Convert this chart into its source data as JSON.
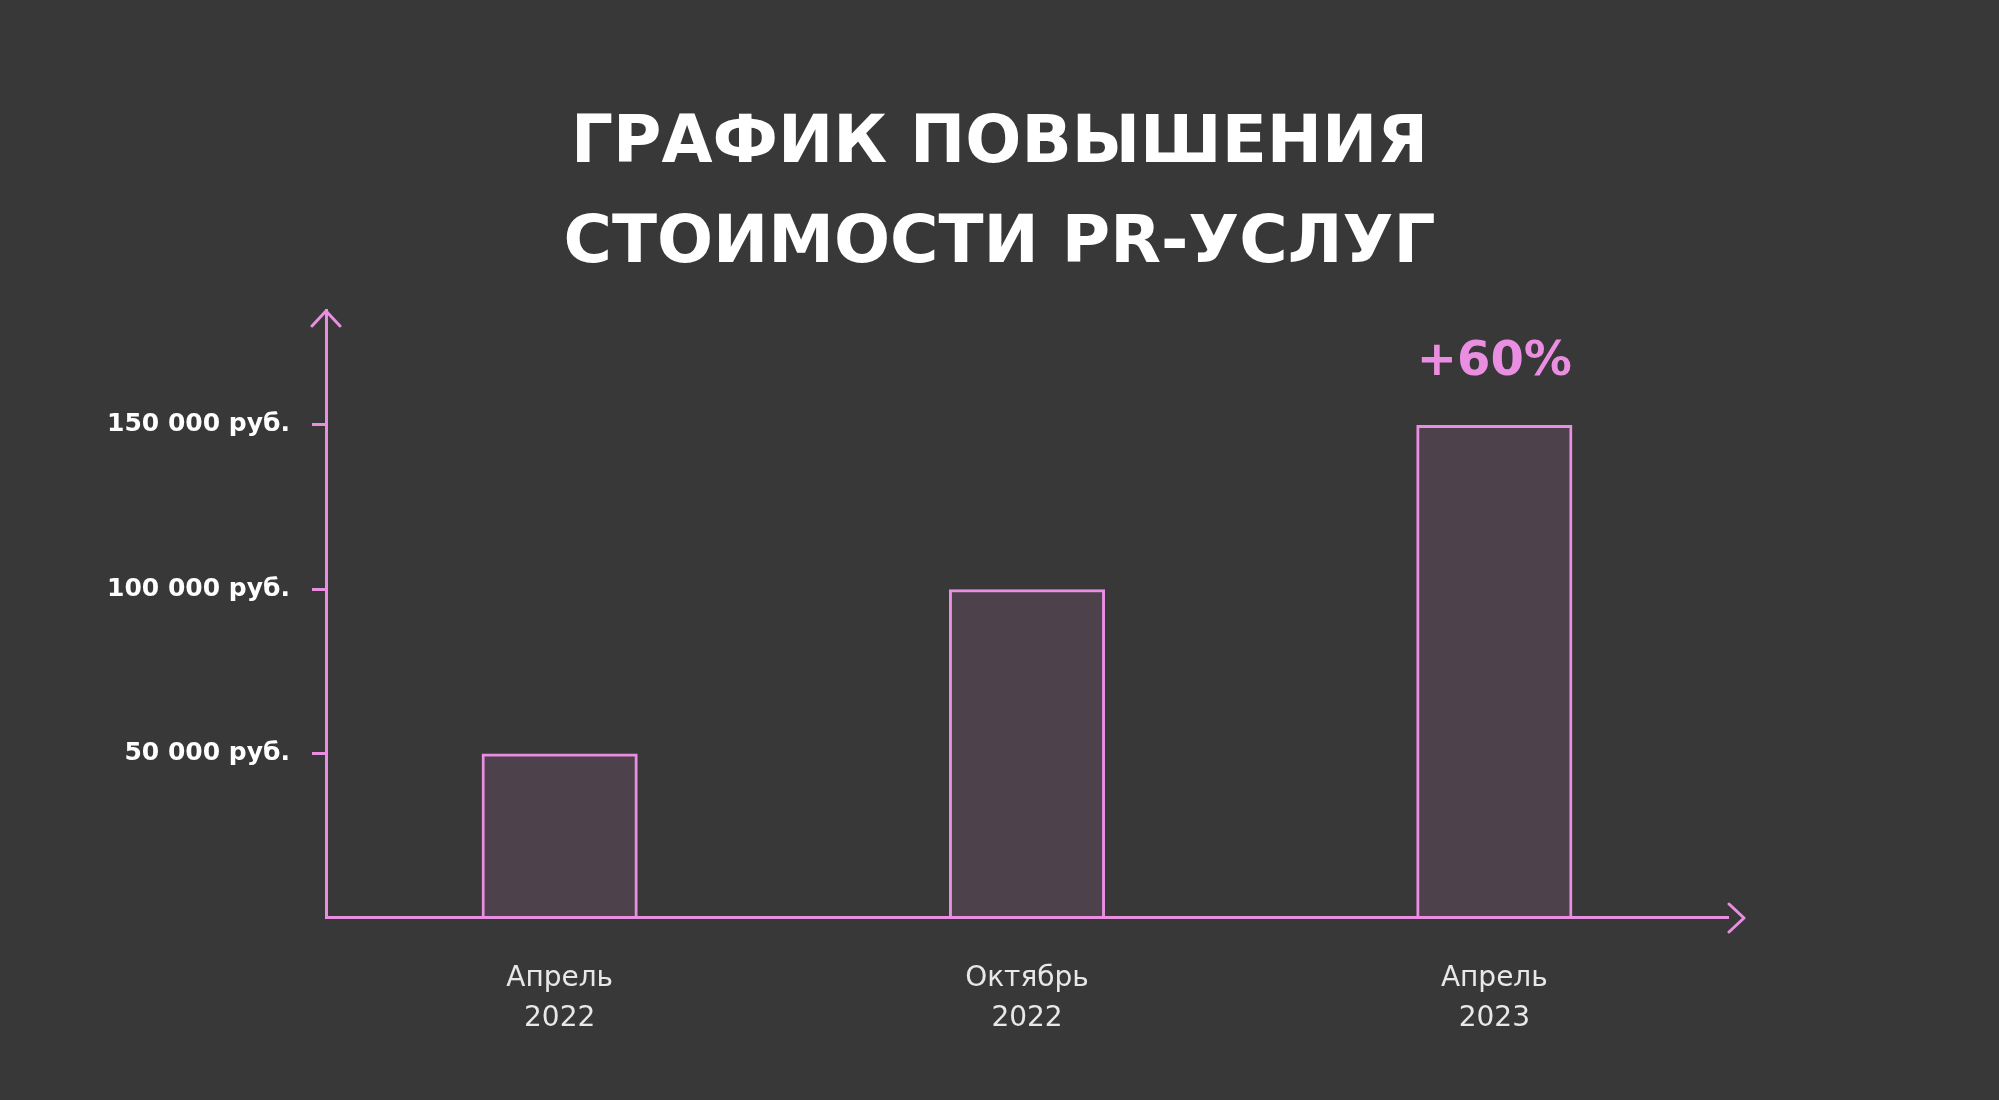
{
  "chart_data": {
    "type": "bar",
    "title": "ГРАФИК ПОВЫШЕНИЯ СТОИМОСТИ PR-УСЛУГ",
    "categories": [
      "Апрель 2022",
      "Октябрь 2022",
      "Апрель 2023"
    ],
    "values": [
      50000,
      100000,
      150000
    ],
    "color": "#ea8ee2",
    "ylim": [
      0,
      185000
    ],
    "yticks": [
      {
        "value": 50000,
        "label": "50 000 руб."
      },
      {
        "value": 100000,
        "label": "100 000 руб."
      },
      {
        "value": 150000,
        "label": "150 000 руб."
      }
    ],
    "annotations": [
      "+60%"
    ],
    "grid": false,
    "legend": false
  }
}
